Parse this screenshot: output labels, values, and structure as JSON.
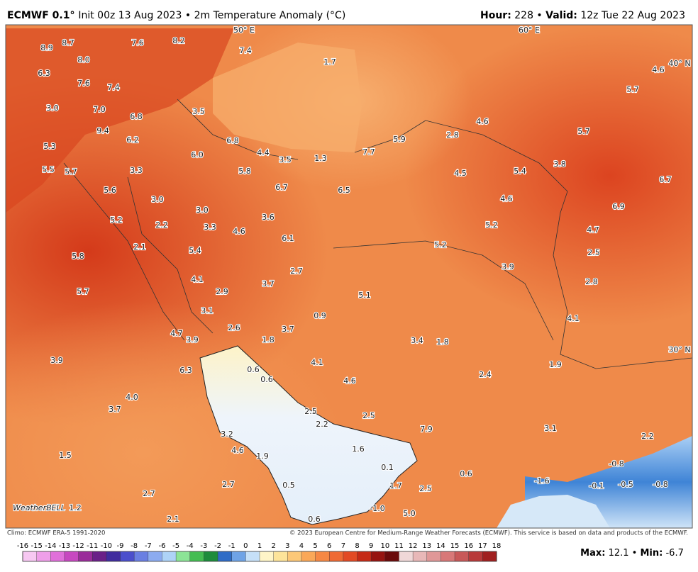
{
  "header": {
    "left": [
      {
        "text": "ECMWF 0.1° ",
        "bold": true
      },
      {
        "text": "Init 00z 13 Aug 2023 • 2m Temperature Anomaly (°C)",
        "bold": false
      }
    ],
    "right": [
      {
        "text": "Hour:",
        "bold": true
      },
      {
        "text": " 228 • ",
        "bold": false
      },
      {
        "text": "Valid:",
        "bold": true
      },
      {
        "text": " 12z Tue 22 Aug 2023",
        "bold": false
      }
    ]
  },
  "map": {
    "coordinate_labels": [
      "50° E",
      "60° E",
      "40° N",
      "30° N"
    ],
    "watermark": "WeatherBELL",
    "labels": [
      "8.9",
      "8.7",
      "7.6",
      "8.2",
      "7.4",
      "8.0",
      "6.3",
      "7.6",
      "7.4",
      "3.0",
      "7.0",
      "6.8",
      "3.5",
      "9.4",
      "6.2",
      "5.3",
      "6.8",
      "4.4",
      "3.5",
      "1.3",
      "7.7",
      "5.9",
      "2.8",
      "4.6",
      "6.0",
      "5.5",
      "5.7",
      "3.3",
      "5.8",
      "4.5",
      "5.4",
      "3.8",
      "6.7",
      "6.5",
      "5.6",
      "3.0",
      "4.6",
      "6.7",
      "3.0",
      "6.9",
      "5.2",
      "2.2",
      "3.3",
      "4.6",
      "3.6",
      "6.1",
      "5.2",
      "4.7",
      "2.1",
      "5.4",
      "5.2",
      "2.5",
      "5.8",
      "2.7",
      "3.9",
      "4.1",
      "2.9",
      "3.7",
      "2.8",
      "5.7",
      "5.1",
      "3.1",
      "0.9",
      "4.1",
      "2.6",
      "3.7",
      "4.7",
      "3.9",
      "1.8",
      "3.4",
      "1.8",
      "3.9",
      "6.3",
      "4.1",
      "0.6",
      "1.9",
      "0.6",
      "4.6",
      "2.4",
      "4.0",
      "3.7",
      "2.5",
      "2.5",
      "2.2",
      "7.9",
      "3.1",
      "3.2",
      "2.2",
      "1.5",
      "4.6",
      "1.9",
      "1.6",
      "0.1",
      "-0.8",
      "0.6",
      "-1.6",
      "2.7",
      "2.7",
      "0.5",
      "1.7",
      "2.5",
      "-0.1",
      "-0.5",
      "-0.8",
      "1.2",
      "-1.0",
      "5.0",
      "2.1",
      "0.6",
      "4.6",
      "5.7",
      "5.7",
      "1.7"
    ]
  },
  "colorbar": {
    "ticks": [
      -16,
      -15,
      -14,
      -13,
      -12,
      -11,
      -10,
      -9,
      -8,
      -7,
      -6,
      -5,
      -4,
      -3,
      -2,
      -1,
      0,
      1,
      2,
      3,
      4,
      5,
      6,
      7,
      8,
      9,
      10,
      11,
      12,
      13,
      14,
      15,
      16,
      17,
      18
    ],
    "colors": [
      "#f7c8f2",
      "#ef9fe9",
      "#e070da",
      "#c748c0",
      "#9a2c9a",
      "#6a2088",
      "#402c9e",
      "#4b4fcc",
      "#6a7fe2",
      "#8cabf0",
      "#aed3f7",
      "#8ce496",
      "#44bd52",
      "#1d8c3c",
      "#2f6cc6",
      "#6fa3e6",
      "#c6e0f8",
      "#fff5c8",
      "#fde49a",
      "#fcc878",
      "#faa858",
      "#f68844",
      "#ef6a34",
      "#e24a24",
      "#c52a16",
      "#961410",
      "#6a0a0a",
      "#f0d8d8",
      "#e8b8b8",
      "#e09898",
      "#d87878",
      "#c85858",
      "#b83a3a",
      "#a02020"
    ]
  },
  "footer": {
    "climo": "Climo: ECMWF ERA-5 1991-2020",
    "credit": "© 2023 European Centre for Medium-Range Weather Forecasts (ECMWF). This service is based on data and products of the ECMWF.",
    "max_label": "Max:",
    "max": 12.1,
    "separator": " • ",
    "min_label": "Min:",
    "min": -6.7
  }
}
